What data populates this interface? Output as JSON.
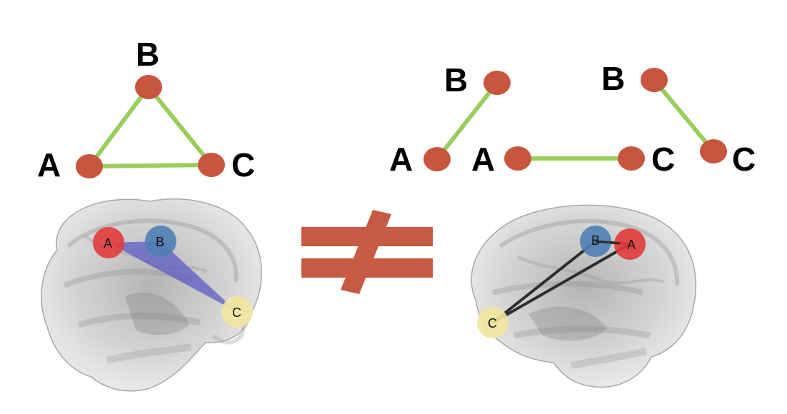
{
  "colors": {
    "graph_node": "#c8553d",
    "graph_edge": "#9acd5a",
    "not_equal": "#c65a43",
    "region_a": "#e23b3b",
    "region_b": "#4f7fb4",
    "region_c": "#f1e7a0",
    "hyperedge_fill": "#5b5bc4",
    "pair_edge": "#2e2e2e",
    "brain_tissue": "#bdbdbd"
  },
  "hypergraph": {
    "label_a": "A",
    "label_b": "B",
    "label_c": "C"
  },
  "pairwise_graphs": [
    {
      "label_a": "A",
      "label_b": "B"
    },
    {
      "label_a": "A",
      "label_c": "C"
    },
    {
      "label_b": "B",
      "label_c": "C"
    }
  ],
  "brain_left": {
    "label_a": "A",
    "label_b": "B",
    "label_c": "C"
  },
  "brain_right": {
    "label_a": "A",
    "label_b": "B",
    "label_c": "C"
  },
  "relation_symbol": "not-equal-icon"
}
